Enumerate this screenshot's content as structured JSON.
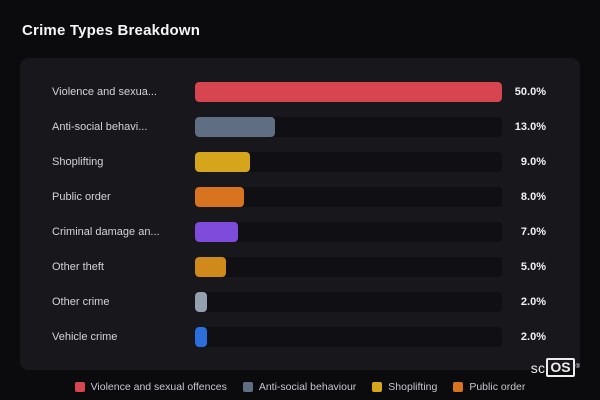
{
  "title": "Crime Types Breakdown",
  "chart_data": {
    "type": "bar",
    "orientation": "horizontal",
    "title": "Crime Types Breakdown",
    "max_value": 50,
    "categories": [
      "Violence and sexua...",
      "Anti-social behavi...",
      "Shoplifting",
      "Public order",
      "Criminal damage an...",
      "Other theft",
      "Other crime",
      "Vehicle crime"
    ],
    "values": [
      50,
      13,
      9,
      8,
      7,
      5,
      2,
      2
    ],
    "value_labels": [
      "50.0%",
      "13.0%",
      "9.0%",
      "8.0%",
      "7.0%",
      "5.0%",
      "2.0%",
      "2.0%"
    ],
    "colors": [
      "#d64550",
      "#5f6e82",
      "#d5a51b",
      "#d8731f",
      "#7e4bdb",
      "#d08a1c",
      "#93a0ad",
      "#2a6fdb"
    ],
    "xlim": [
      0,
      50
    ],
    "grid": false,
    "legend_position": "bottom"
  },
  "legend": {
    "items": [
      {
        "label": "Violence and sexual offences",
        "color": "#d64550"
      },
      {
        "label": "Anti-social behaviour",
        "color": "#5f6e82"
      },
      {
        "label": "Shoplifting",
        "color": "#d5a51b"
      },
      {
        "label": "Public order",
        "color": "#d8731f"
      }
    ]
  },
  "brand": {
    "prefix": "sc",
    "os": "OS",
    "reg": "®"
  }
}
